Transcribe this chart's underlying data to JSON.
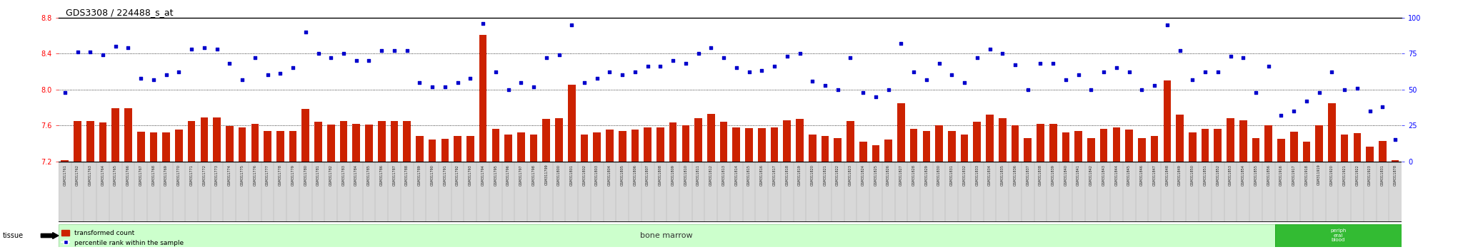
{
  "title": "GDS3308 / 224488_s_at",
  "ylim_left": [
    7.2,
    8.8
  ],
  "ylim_right": [
    0,
    100
  ],
  "yticks_left": [
    7.2,
    7.6,
    8.0,
    8.4,
    8.8
  ],
  "yticks_right": [
    0,
    25,
    50,
    75,
    100
  ],
  "bar_color": "#cc2200",
  "dot_color": "#0000cc",
  "tissue_bg": "#ccffcc",
  "tissue_label": "bone marrow",
  "periph_label": "periph\neral\nblood",
  "bar_width": 0.6,
  "samples": [
    "GSM311761",
    "GSM311762",
    "GSM311763",
    "GSM311764",
    "GSM311765",
    "GSM311766",
    "GSM311767",
    "GSM311768",
    "GSM311769",
    "GSM311770",
    "GSM311771",
    "GSM311772",
    "GSM311773",
    "GSM311774",
    "GSM311775",
    "GSM311776",
    "GSM311777",
    "GSM311778",
    "GSM311779",
    "GSM311780",
    "GSM311781",
    "GSM311782",
    "GSM311783",
    "GSM311784",
    "GSM311785",
    "GSM311786",
    "GSM311787",
    "GSM311788",
    "GSM311789",
    "GSM311790",
    "GSM311791",
    "GSM311792",
    "GSM311793",
    "GSM311794",
    "GSM311795",
    "GSM311796",
    "GSM311797",
    "GSM311798",
    "GSM311799",
    "GSM311800",
    "GSM311801",
    "GSM311802",
    "GSM311803",
    "GSM311804",
    "GSM311805",
    "GSM311806",
    "GSM311807",
    "GSM311808",
    "GSM311809",
    "GSM311810",
    "GSM311811",
    "GSM311812",
    "GSM311813",
    "GSM311814",
    "GSM311815",
    "GSM311816",
    "GSM311817",
    "GSM311818",
    "GSM311819",
    "GSM311820",
    "GSM311821",
    "GSM311822",
    "GSM311823",
    "GSM311824",
    "GSM311825",
    "GSM311826",
    "GSM311827",
    "GSM311828",
    "GSM311829",
    "GSM311830",
    "GSM311831",
    "GSM311832",
    "GSM311833",
    "GSM311834",
    "GSM311835",
    "GSM311836",
    "GSM311837",
    "GSM311838",
    "GSM311839",
    "GSM311840",
    "GSM311841",
    "GSM311842",
    "GSM311843",
    "GSM311844",
    "GSM311845",
    "GSM311846",
    "GSM311847",
    "GSM311848",
    "GSM311849",
    "GSM311850",
    "GSM311851",
    "GSM311852",
    "GSM311853",
    "GSM311854",
    "GSM311855",
    "GSM311856",
    "GSM311916",
    "GSM311917",
    "GSM311918",
    "GSM311919",
    "GSM311920",
    "GSM311921",
    "GSM311922",
    "GSM311923",
    "GSM311831",
    "GSM311878"
  ],
  "bar_values": [
    7.21,
    7.65,
    7.65,
    7.63,
    7.79,
    7.79,
    7.53,
    7.52,
    7.52,
    7.55,
    7.65,
    7.69,
    7.69,
    7.59,
    7.58,
    7.62,
    7.54,
    7.54,
    7.54,
    7.78,
    7.64,
    7.61,
    7.65,
    7.62,
    7.61,
    7.65,
    7.65,
    7.65,
    7.48,
    7.44,
    7.45,
    7.48,
    7.48,
    8.61,
    7.56,
    7.5,
    7.52,
    7.5,
    7.67,
    7.68,
    8.05,
    7.5,
    7.52,
    7.55,
    7.54,
    7.55,
    7.58,
    7.58,
    7.63,
    7.6,
    7.68,
    7.73,
    7.64,
    7.58,
    7.57,
    7.57,
    7.58,
    7.66,
    7.67,
    7.5,
    7.48,
    7.46,
    7.65,
    7.42,
    7.38,
    7.44,
    7.85,
    7.56,
    7.54,
    7.6,
    7.54,
    7.5,
    7.64,
    7.72,
    7.68,
    7.6,
    7.46,
    7.62,
    7.62,
    7.52,
    7.54,
    7.46,
    7.56,
    7.58,
    7.55,
    7.46,
    7.48,
    8.1,
    7.72,
    7.52,
    7.56,
    7.56,
    7.68,
    7.66,
    7.46,
    7.6,
    7.45,
    7.53,
    7.42,
    7.6,
    7.85,
    7.5,
    7.51,
    7.36,
    7.43,
    7.21
  ],
  "dot_values": [
    48,
    76,
    76,
    74,
    80,
    79,
    58,
    57,
    60,
    62,
    78,
    79,
    78,
    68,
    57,
    72,
    60,
    61,
    65,
    90,
    75,
    72,
    75,
    70,
    70,
    77,
    77,
    77,
    55,
    52,
    52,
    55,
    58,
    96,
    62,
    50,
    55,
    52,
    72,
    74,
    95,
    55,
    58,
    62,
    60,
    62,
    66,
    66,
    70,
    68,
    75,
    79,
    72,
    65,
    62,
    63,
    66,
    73,
    75,
    56,
    53,
    50,
    72,
    48,
    45,
    50,
    82,
    62,
    57,
    68,
    60,
    55,
    72,
    78,
    75,
    67,
    50,
    68,
    68,
    57,
    60,
    50,
    62,
    65,
    62,
    50,
    53,
    95,
    77,
    57,
    62,
    62,
    73,
    72,
    48,
    66,
    32,
    35,
    42,
    48,
    62,
    50,
    51,
    35,
    38,
    15
  ],
  "bone_marrow_count": 96,
  "legend_bar_label": "transformed count",
  "legend_dot_label": "percentile rank within the sample",
  "tissue_row_label": "tissue"
}
